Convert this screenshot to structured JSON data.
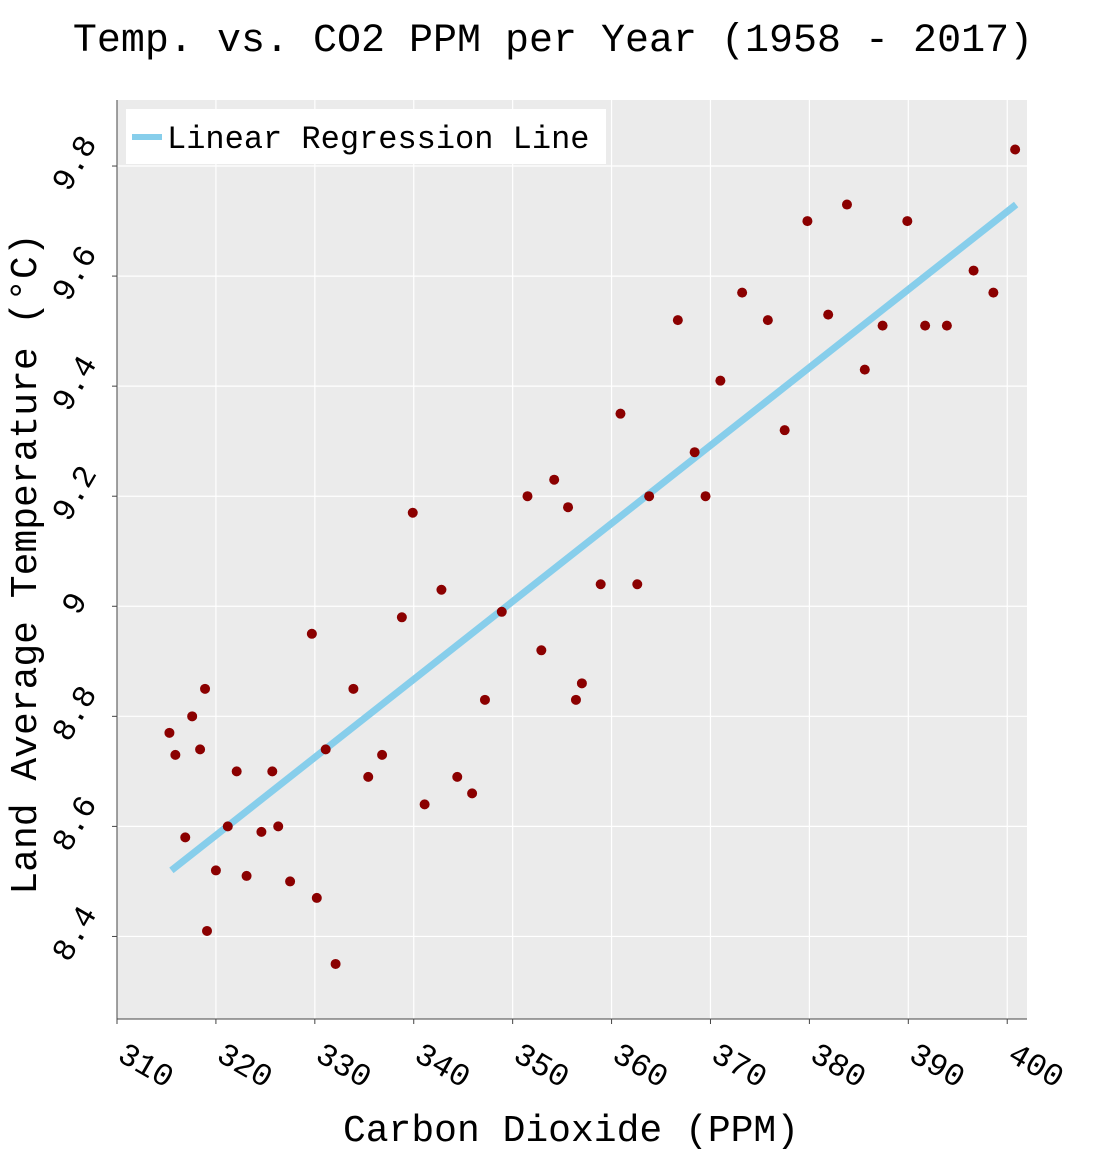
{
  "chart_data": {
    "type": "scatter",
    "title": "Temp. vs. CO2 PPM per Year (1958 - 2017)",
    "xlabel": "Carbon Dioxide (PPM)",
    "ylabel": "Land Average Temperature (°C)",
    "xlim": [
      310,
      402
    ],
    "ylim": [
      8.25,
      9.92
    ],
    "x_ticks": [
      310,
      320,
      330,
      340,
      350,
      360,
      370,
      380,
      390,
      400
    ],
    "x_tick_labels": [
      "310",
      "320",
      "330",
      "340",
      "350",
      "360",
      "370",
      "380",
      "390",
      "400"
    ],
    "y_ticks": [
      8.4,
      8.6,
      8.8,
      9.0,
      9.2,
      9.4,
      9.6,
      9.8
    ],
    "y_tick_labels": [
      "8.4",
      "8.6",
      "8.8",
      "9",
      "9.2",
      "9.4",
      "9.6",
      "9.8"
    ],
    "grid": true,
    "legend": {
      "position": "top-left",
      "entries": [
        "Linear Regression Line"
      ]
    },
    "colors": {
      "points": "#8b0000",
      "regression": "#87ceeb",
      "plot_bg": "#ebebeb",
      "grid": "#ffffff"
    },
    "series": [
      {
        "kind": "points",
        "x": [
          315.3,
          315.9,
          316.9,
          317.6,
          318.4,
          318.9,
          319.1,
          320.0,
          321.2,
          322.1,
          323.1,
          324.6,
          325.7,
          326.3,
          327.5,
          329.7,
          330.2,
          331.1,
          332.1,
          333.9,
          335.4,
          336.8,
          338.8,
          339.9,
          341.1,
          342.8,
          344.4,
          345.9,
          347.2,
          348.9,
          351.5,
          352.9,
          354.2,
          355.6,
          356.4,
          357.0,
          358.9,
          360.9,
          362.6,
          363.8,
          366.7,
          368.4,
          369.5,
          371.0,
          373.2,
          375.8,
          377.5,
          379.8,
          381.9,
          383.8,
          385.6,
          387.4,
          389.9,
          391.7,
          393.9,
          396.6,
          398.6,
          400.8
        ],
        "y": [
          8.77,
          8.73,
          8.58,
          8.8,
          8.74,
          8.85,
          8.41,
          8.52,
          8.6,
          8.7,
          8.51,
          8.59,
          8.7,
          8.6,
          8.5,
          8.95,
          8.47,
          8.74,
          8.35,
          8.85,
          8.69,
          8.73,
          8.98,
          9.17,
          8.64,
          9.03,
          8.69,
          8.66,
          8.83,
          8.99,
          9.2,
          8.92,
          9.23,
          9.18,
          8.83,
          8.86,
          9.04,
          9.35,
          9.04,
          9.2,
          9.52,
          9.28,
          9.2,
          9.41,
          9.57,
          9.52,
          9.32,
          9.7,
          9.53,
          9.73,
          9.43,
          9.51,
          9.7,
          9.51,
          9.51,
          9.61,
          9.57,
          9.83
        ]
      },
      {
        "name": "Linear Regression Line",
        "kind": "line",
        "x": [
          315.5,
          400.9
        ],
        "y": [
          8.52,
          9.73
        ]
      }
    ]
  }
}
